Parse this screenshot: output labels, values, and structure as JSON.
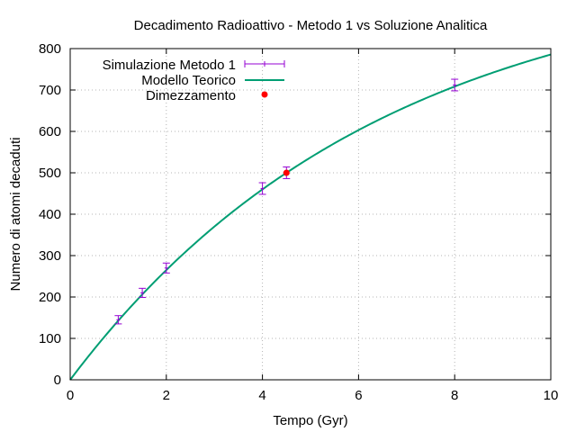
{
  "chart_data": {
    "type": "scatter",
    "title": "Decadimento Radioattivo - Metodo 1 vs Soluzione Analitica",
    "xlabel": "Tempo (Gyr)",
    "ylabel": "Numero di atomi decaduti",
    "xlim": [
      0,
      10
    ],
    "ylim": [
      0,
      800
    ],
    "xticks": [
      0,
      2,
      4,
      6,
      8,
      10
    ],
    "yticks": [
      0,
      100,
      200,
      300,
      400,
      500,
      600,
      700,
      800
    ],
    "grid": true,
    "legend_position": "top-left",
    "series": [
      {
        "name": "Simulazione Metodo 1",
        "style": "errorbars",
        "color": "#9400d3",
        "points": [
          {
            "x": 1.0,
            "y": 145,
            "err": 10
          },
          {
            "x": 1.5,
            "y": 210,
            "err": 11
          },
          {
            "x": 2.0,
            "y": 270,
            "err": 12
          },
          {
            "x": 4.0,
            "y": 462,
            "err": 14
          },
          {
            "x": 4.5,
            "y": 500,
            "err": 14
          },
          {
            "x": 8.0,
            "y": 712,
            "err": 14
          }
        ]
      },
      {
        "name": "Modello Teorico",
        "style": "line",
        "color": "#009e73",
        "model": {
          "N0": 1000,
          "half_life": 4.5
        }
      },
      {
        "name": "Dimezzamento",
        "style": "point",
        "color": "#ff0000",
        "points": [
          {
            "x": 4.5,
            "y": 500
          }
        ]
      }
    ]
  }
}
